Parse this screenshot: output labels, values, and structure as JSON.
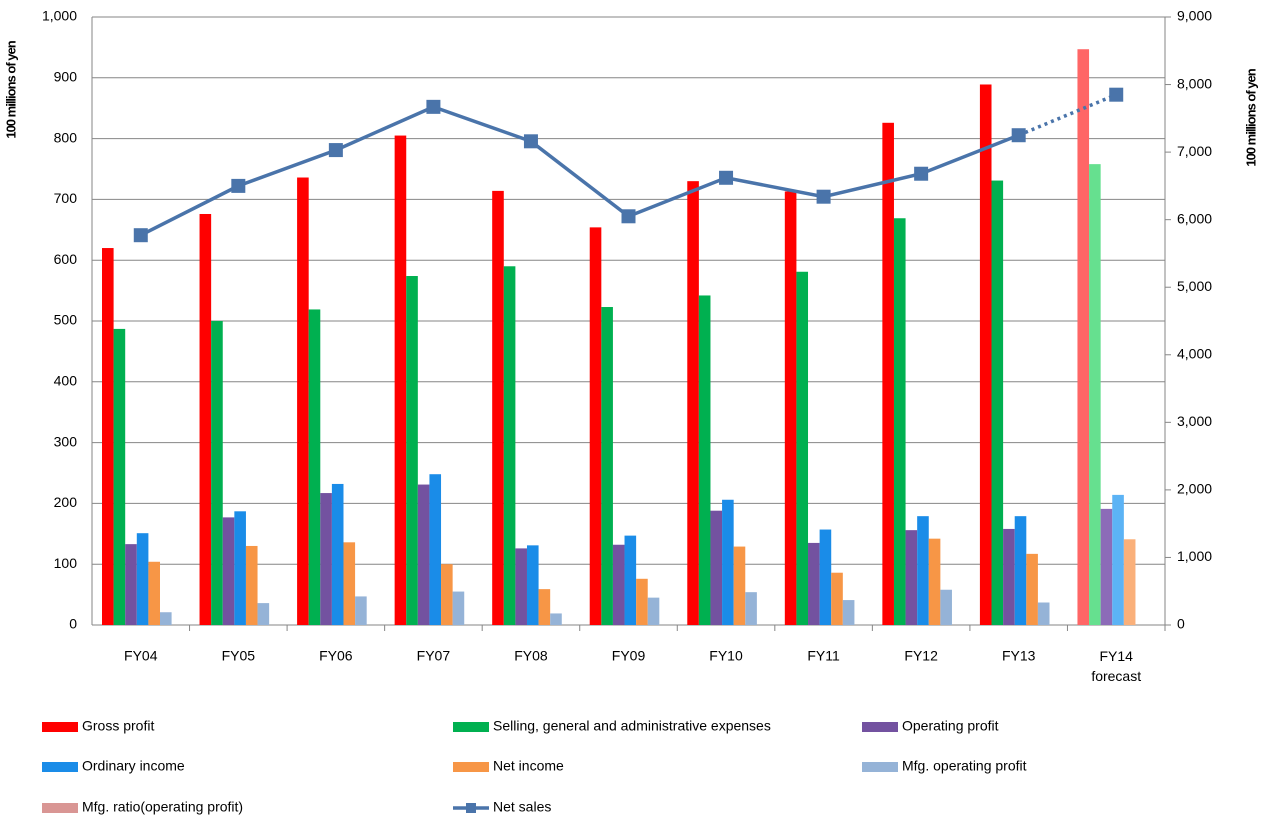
{
  "chart_data": {
    "type": "bar",
    "y_label": "100 millions of yen",
    "y2_label": "100 millions of yen",
    "categories": [
      "FY04",
      "FY05",
      "FY06",
      "FY07",
      "FY08",
      "FY09",
      "FY10",
      "FY11",
      "FY12",
      "FY13",
      "FY14\nforecast"
    ],
    "forecast_index": 10,
    "series": [
      {
        "name": "Gross profit",
        "color": "#ff0000",
        "forecast_color": "#ff6666",
        "values": [
          620,
          676,
          736,
          805,
          714,
          654,
          730,
          713,
          826,
          889,
          947
        ]
      },
      {
        "name": "Selling, general and administrative expenses",
        "color": "#00b050",
        "forecast_color": "#66e08f",
        "values": [
          487,
          500,
          519,
          574,
          590,
          523,
          542,
          581,
          669,
          731,
          758
        ]
      },
      {
        "name": "Operating profit",
        "color": "#7352a0",
        "forecast_color": "#8c6bb8",
        "values": [
          133,
          177,
          217,
          231,
          126,
          132,
          188,
          135,
          156,
          158,
          191
        ]
      },
      {
        "name": "Ordinary income",
        "color": "#1a8ce8",
        "forecast_color": "#5cb3f5",
        "values": [
          151,
          187,
          232,
          248,
          131,
          147,
          206,
          157,
          179,
          179,
          214
        ]
      },
      {
        "name": "Net income",
        "color": "#f79646",
        "forecast_color": "#fab07a",
        "values": [
          104,
          130,
          136,
          100,
          59,
          76,
          129,
          86,
          142,
          117,
          141
        ]
      },
      {
        "name": "Mfg. operating profit",
        "color": "#95b3d7",
        "forecast_color": "#b8cde6",
        "values": [
          21,
          36,
          47,
          55,
          19,
          45,
          54,
          41,
          58,
          37,
          null
        ]
      },
      {
        "name": "Mfg. ratio(operating profit)",
        "color": "#d99694",
        "forecast_color": "#e6b5b4",
        "values": [
          null,
          null,
          null,
          null,
          null,
          null,
          null,
          null,
          null,
          null,
          null
        ]
      },
      {
        "name": "Net sales",
        "type": "line",
        "axis": "y2",
        "color": "#4a74aa",
        "values": [
          5770,
          6500,
          7030,
          7670,
          7160,
          6050,
          6620,
          6340,
          6680,
          7250,
          7850
        ]
      }
    ],
    "ylim": [
      0,
      1000
    ],
    "yticks": [
      0,
      100,
      200,
      300,
      400,
      500,
      600,
      700,
      800,
      900,
      {
        "value": 1000,
        "label": "1,000"
      }
    ],
    "y2lim": [
      0,
      9000
    ],
    "y2ticks": [
      0,
      {
        "value": 1000,
        "label": "1,000"
      },
      {
        "value": 2000,
        "label": "2,000"
      },
      {
        "value": 3000,
        "label": "3,000"
      },
      {
        "value": 4000,
        "label": "4,000"
      },
      {
        "value": 5000,
        "label": "5,000"
      },
      {
        "value": 6000,
        "label": "6,000"
      },
      {
        "value": 7000,
        "label": "7,000"
      },
      {
        "value": 8000,
        "label": "8,000"
      },
      {
        "value": 9000,
        "label": "9,000"
      }
    ],
    "grid": true
  }
}
